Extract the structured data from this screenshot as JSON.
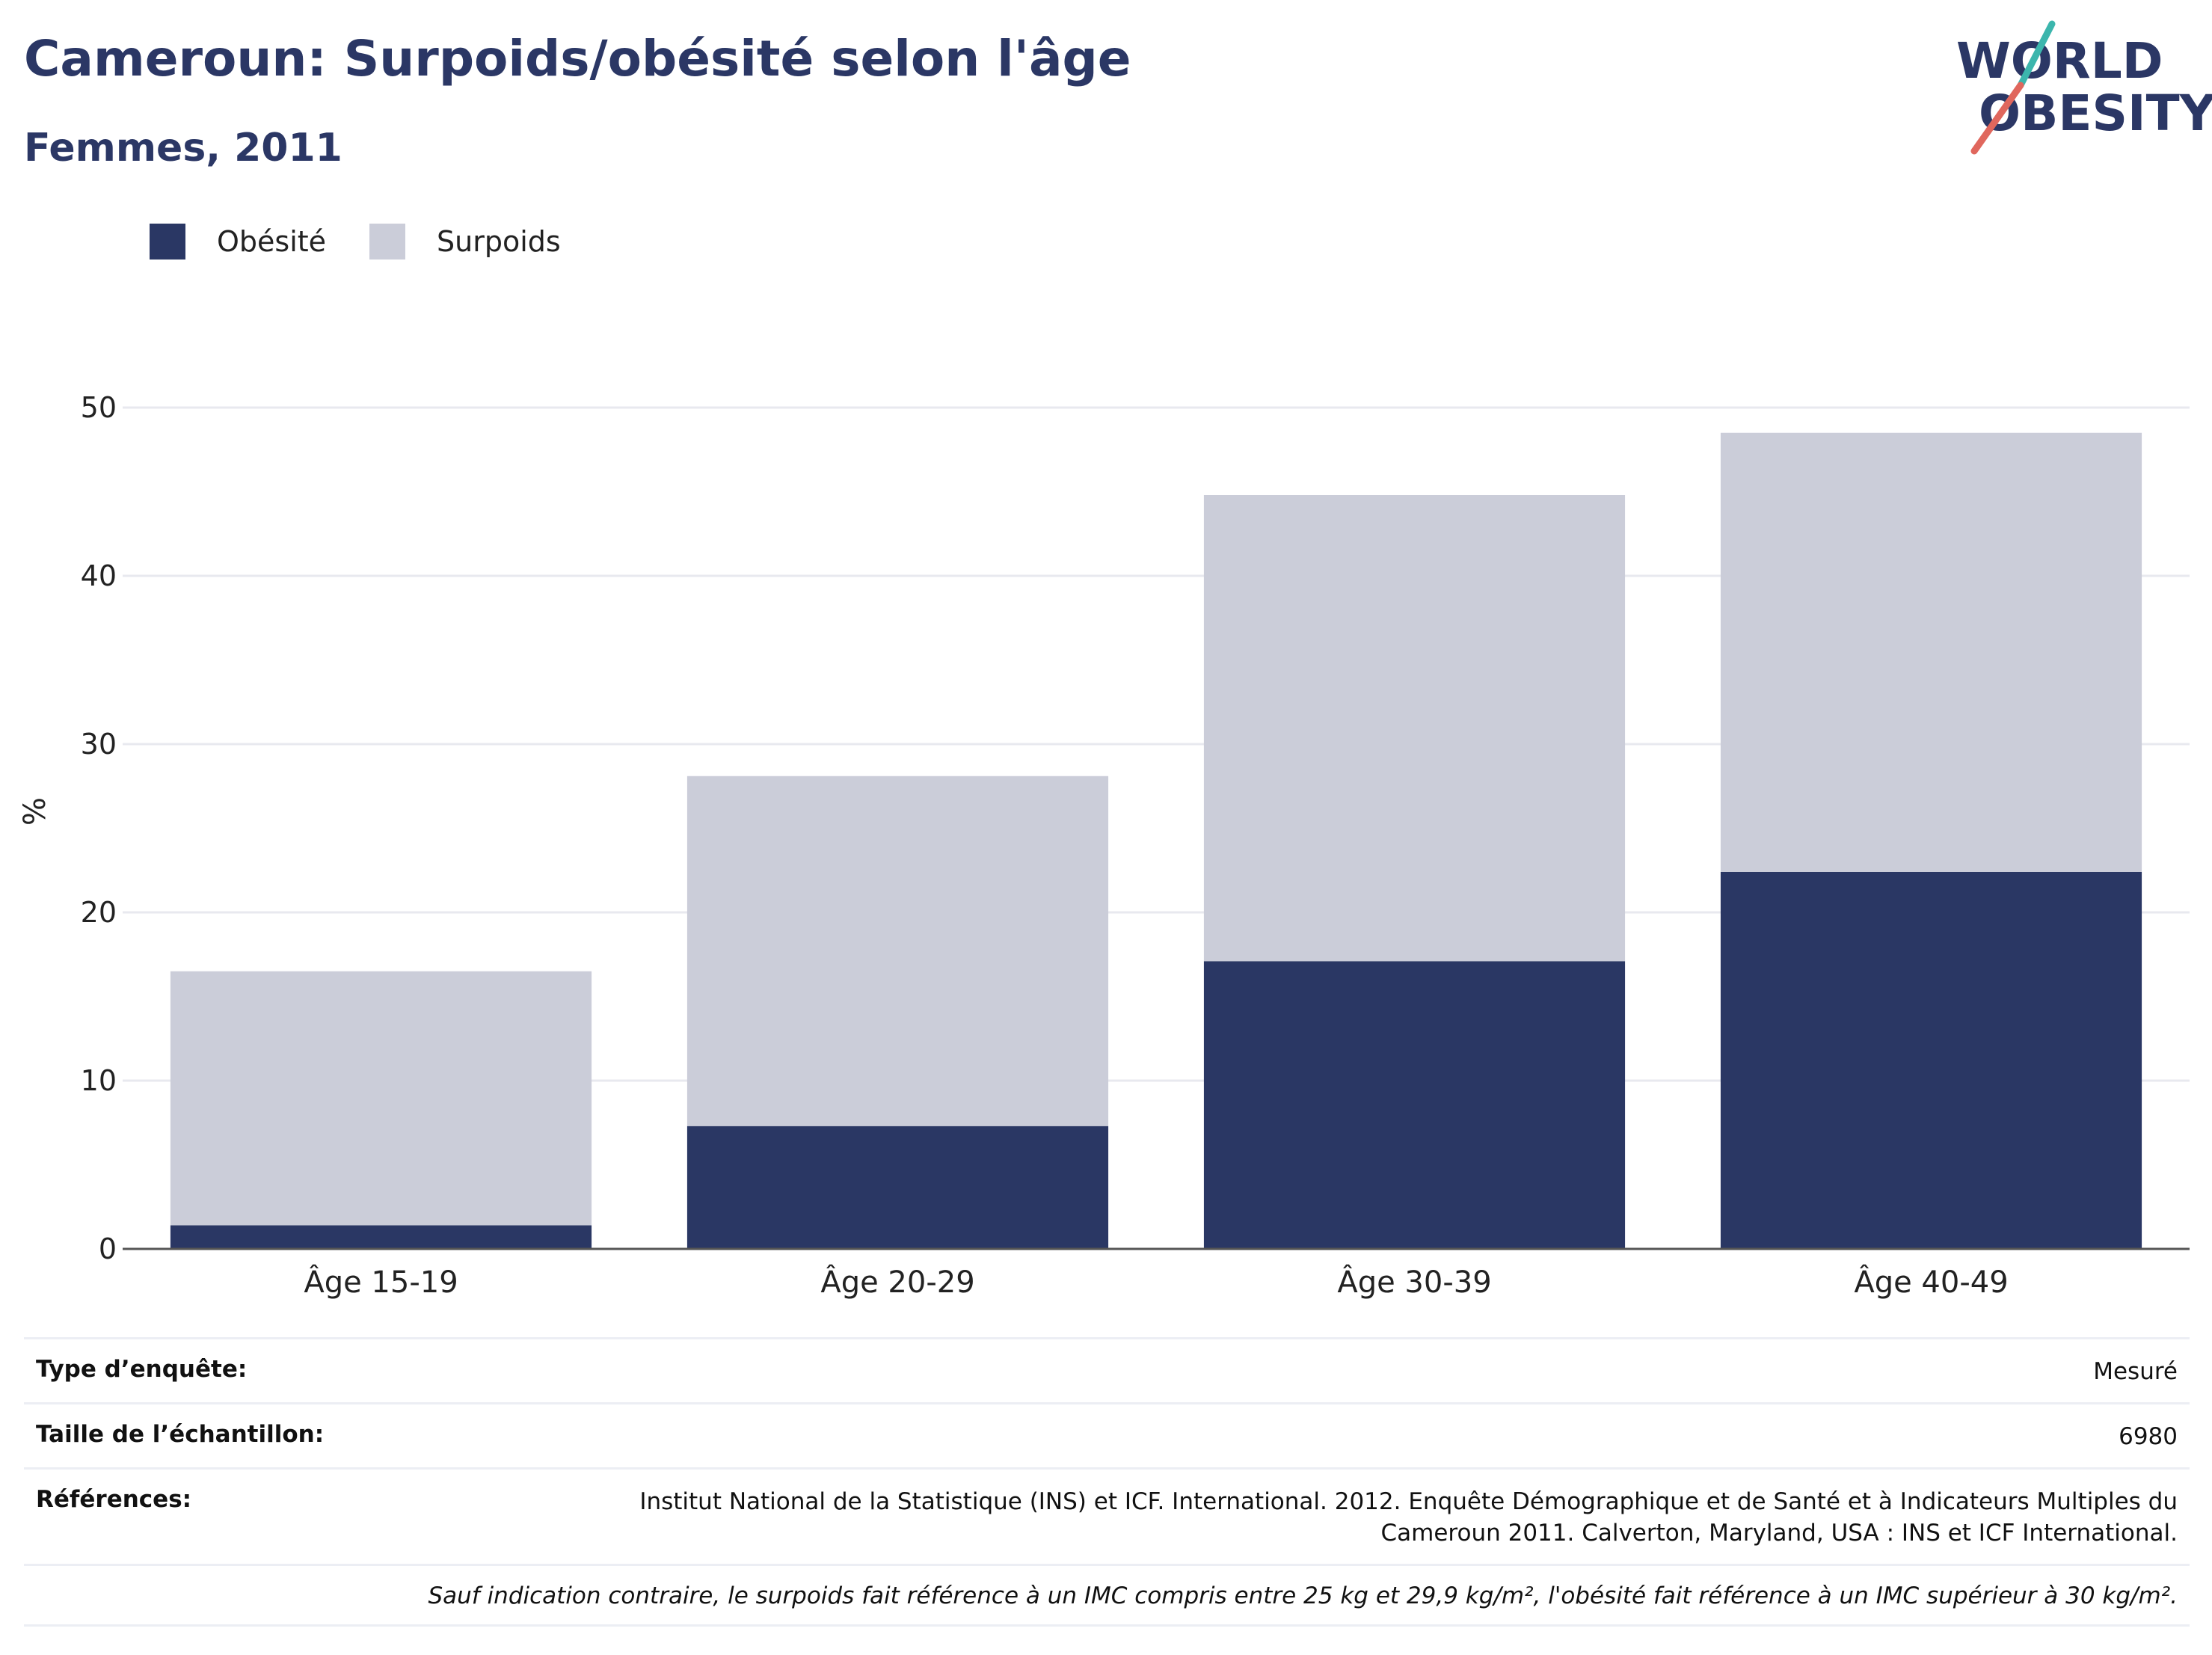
{
  "header": {
    "title": "Cameroun: Surpoids/obésité selon l'âge",
    "subtitle": "Femmes, 2011",
    "logo_line1": "WORLD",
    "logo_line2": "OBESITY"
  },
  "colors": {
    "obesity": "#2a3764",
    "overweight": "#cbcdd9",
    "logo_text": "#2b3765",
    "logo_teal": "#3cb6ad",
    "logo_coral": "#e0675d"
  },
  "chart_data": {
    "type": "bar",
    "stacked": true,
    "categories": [
      "Âge 15-19",
      "Âge 20-29",
      "Âge 30-39",
      "Âge 40-49"
    ],
    "series": [
      {
        "name": "Obésité",
        "values": [
          1.4,
          7.3,
          17.1,
          22.4
        ]
      },
      {
        "name": "Surpoids",
        "values": [
          15.1,
          20.8,
          27.7,
          26.1
        ]
      }
    ],
    "ylabel": "%",
    "yticks": [
      0,
      10,
      20,
      30,
      40,
      50
    ],
    "ylim": [
      0,
      52
    ],
    "grid": true,
    "legend_position": "top-left"
  },
  "info": {
    "survey_type_label": "Type d’enquête:",
    "survey_type_value": "Mesuré",
    "sample_size_label": "Taille de l’échantillon:",
    "sample_size_value": "6980",
    "references_label": "Références:",
    "references_value": "Institut National de la Statistique (INS) et ICF. International. 2012. Enquête Démographique et de Santé et à Indicateurs Multiples du Cameroun 2011. Calverton, Maryland, USA : INS et ICF International.",
    "note": "Sauf indication contraire, le surpoids fait référence à un IMC compris entre 25 kg et 29,9 kg/m², l'obésité fait référence à un IMC supérieur à 30 kg/m²."
  }
}
